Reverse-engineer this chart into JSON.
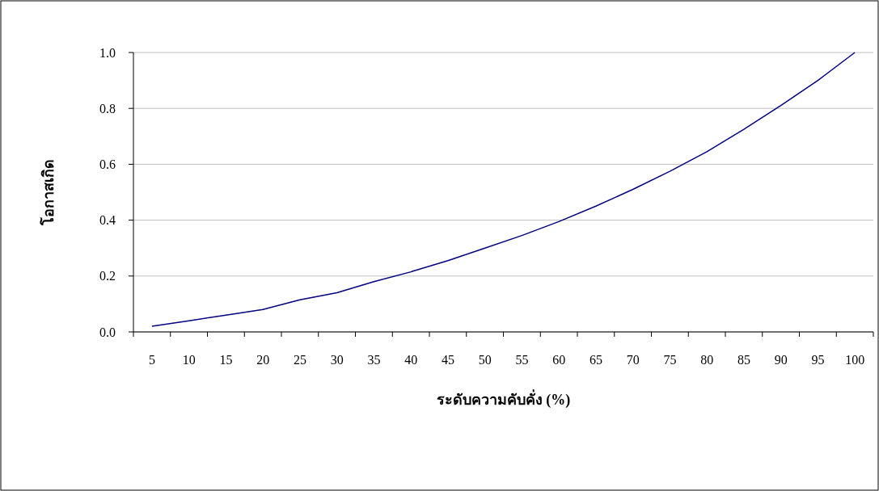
{
  "chart_data": {
    "type": "line",
    "xlabel": "ระดับความคับคั่ง (%)",
    "ylabel": "โอกาสเกิด",
    "categories": [
      "5",
      "10",
      "15",
      "20",
      "25",
      "30",
      "35",
      "40",
      "45",
      "50",
      "55",
      "60",
      "65",
      "70",
      "75",
      "80",
      "85",
      "90",
      "95",
      "100"
    ],
    "series": [
      {
        "color": "#000080",
        "values": [
          0.02,
          0.04,
          0.06,
          0.08,
          0.115,
          0.14,
          0.18,
          0.215,
          0.255,
          0.3,
          0.345,
          0.395,
          0.45,
          0.51,
          0.575,
          0.645,
          0.725,
          0.81,
          0.9,
          1.0
        ]
      }
    ],
    "ylim": [
      0,
      1
    ],
    "yticks": [
      {
        "value": 0,
        "label": "0.0"
      },
      {
        "value": 0.2,
        "label": "0.2"
      },
      {
        "value": 0.4,
        "label": "0.4"
      },
      {
        "value": 0.6,
        "label": "0.6"
      },
      {
        "value": 0.8,
        "label": "0.8"
      },
      {
        "value": 1,
        "label": "1.0"
      }
    ],
    "grid": "y",
    "marker": "none",
    "line_style": "solid"
  }
}
